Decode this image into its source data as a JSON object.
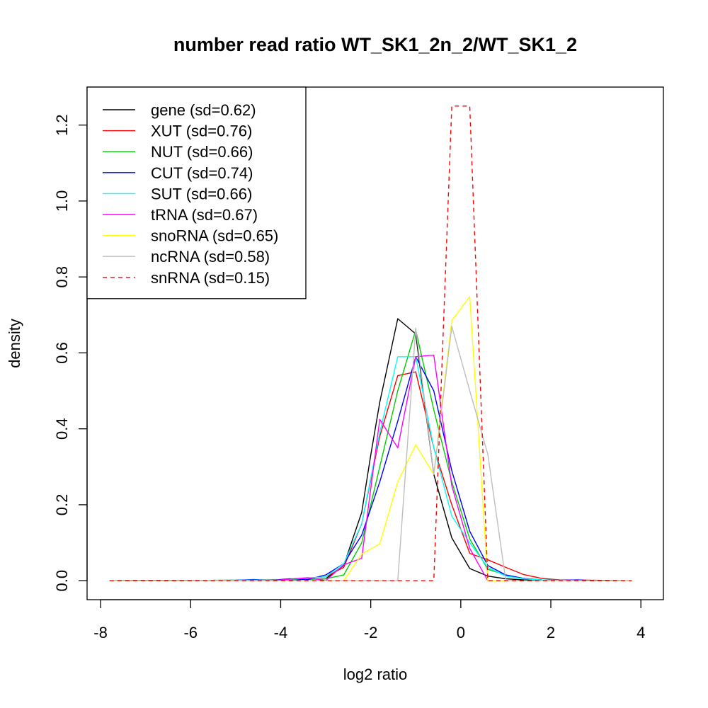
{
  "chart_data": {
    "type": "line",
    "title": "number read ratio WT_SK1_2n_2/WT_SK1_2",
    "xlabel": "log2 ratio",
    "ylabel": "density",
    "xlim": [
      -8.3,
      4.5
    ],
    "ylim": [
      -0.05,
      1.3
    ],
    "xticks": [
      -8,
      -6,
      -4,
      -2,
      0,
      2,
      4
    ],
    "yticks": [
      0.0,
      0.2,
      0.4,
      0.6,
      0.8,
      1.0,
      1.2
    ],
    "xtick_labels": [
      "-8",
      "-6",
      "-4",
      "-2",
      "0",
      "2",
      "4"
    ],
    "ytick_labels": [
      "0.0",
      "0.2",
      "0.4",
      "0.6",
      "0.8",
      "1.0",
      "1.2"
    ],
    "grid": false,
    "legend_position": "top-left",
    "series": [
      {
        "name": "gene (sd=0.62)",
        "color": "#000000",
        "dash": "solid",
        "x": [
          -7.8,
          -5.0,
          -4.0,
          -3.0,
          -2.6,
          -2.2,
          -2.0,
          -1.8,
          -1.6,
          -1.4,
          -1.0,
          -0.6,
          -0.2,
          0.2,
          0.6,
          1.0,
          1.4,
          1.8,
          2.2,
          3.0,
          3.8
        ],
        "y": [
          0,
          0.001,
          0.002,
          0.005,
          0.04,
          0.18,
          0.33,
          0.47,
          0.58,
          0.69,
          0.65,
          0.28,
          0.113,
          0.032,
          0.012,
          0.005,
          0.002,
          0.001,
          0.0,
          0.0,
          0
        ]
      },
      {
        "name": "XUT (sd=0.76)",
        "color": "#ff0000",
        "dash": "solid",
        "x": [
          -7.8,
          -5.0,
          -4.0,
          -3.0,
          -2.6,
          -2.2,
          -1.8,
          -1.4,
          -1.0,
          -0.6,
          -0.2,
          0.2,
          0.6,
          1.0,
          1.4,
          1.8,
          2.2,
          3.0,
          3.8
        ],
        "y": [
          0,
          0.001,
          0.003,
          0.01,
          0.035,
          0.15,
          0.38,
          0.54,
          0.55,
          0.35,
          0.2,
          0.072,
          0.055,
          0.035,
          0.016,
          0.006,
          0.002,
          0.001,
          0
        ]
      },
      {
        "name": "NUT (sd=0.66)",
        "color": "#00cd00",
        "dash": "solid",
        "x": [
          -7.8,
          -5.0,
          -4.0,
          -3.0,
          -2.6,
          -2.2,
          -1.8,
          -1.4,
          -1.0,
          -0.6,
          -0.2,
          0.2,
          0.6,
          1.0,
          1.4,
          1.8,
          2.2,
          3.0,
          3.8
        ],
        "y": [
          0,
          0.001,
          0.002,
          0.005,
          0.015,
          0.1,
          0.3,
          0.5,
          0.66,
          0.45,
          0.26,
          0.11,
          0.03,
          0.015,
          0.006,
          0.002,
          0.001,
          0.0,
          0
        ]
      },
      {
        "name": "CUT (sd=0.74)",
        "color": "#0000ff",
        "dash": "solid",
        "x": [
          -7.8,
          -5.0,
          -4.6,
          -4.2,
          -3.8,
          -3.4,
          -3.0,
          -2.6,
          -2.2,
          -1.8,
          -1.4,
          -1.0,
          -0.6,
          -0.2,
          0.2,
          0.6,
          1.0,
          1.4,
          1.8,
          2.2,
          2.6,
          3.0,
          3.8
        ],
        "y": [
          0,
          0.001,
          0.003,
          0.001,
          0.005,
          0.003,
          0.015,
          0.045,
          0.12,
          0.26,
          0.42,
          0.59,
          0.5,
          0.29,
          0.13,
          0.04,
          0.015,
          0.006,
          0.002,
          0.001,
          0.002,
          0.0,
          0
        ]
      },
      {
        "name": "SUT (sd=0.66)",
        "color": "#00ffff",
        "dash": "solid",
        "x": [
          -7.8,
          -5.0,
          -4.0,
          -3.0,
          -2.6,
          -2.2,
          -1.8,
          -1.4,
          -1.0,
          -0.6,
          -0.2,
          0.2,
          0.6,
          1.0,
          1.4,
          1.8,
          2.2,
          3.0,
          3.8
        ],
        "y": [
          0,
          0.001,
          0.002,
          0.01,
          0.045,
          0.15,
          0.39,
          0.59,
          0.59,
          0.35,
          0.17,
          0.1,
          0.035,
          0.012,
          0.005,
          0.002,
          0.001,
          0.0,
          0
        ]
      },
      {
        "name": "tRNA (sd=0.67)",
        "color": "#ff00ff",
        "dash": "solid",
        "x": [
          -7.8,
          -4.2,
          -3.4,
          -3.0,
          -2.6,
          -2.2,
          -1.8,
          -1.4,
          -1.0,
          -0.6,
          -0.2,
          0.2,
          0.6,
          1.0,
          1.4,
          1.8,
          2.2,
          3.8
        ],
        "y": [
          0,
          0.0,
          0.008,
          0.0,
          0.042,
          0.059,
          0.425,
          0.35,
          0.59,
          0.594,
          0.25,
          0.085,
          0.0,
          0.0,
          0.0,
          0.0,
          0.0,
          0
        ]
      },
      {
        "name": "snoRNA (sd=0.65)",
        "color": "#ffff00",
        "dash": "solid",
        "x": [
          -7.8,
          -2.6,
          -2.2,
          -1.8,
          -1.4,
          -1.0,
          -0.6,
          -0.2,
          0.2,
          0.6,
          1.0,
          3.8
        ],
        "y": [
          0,
          0.0,
          0.07,
          0.097,
          0.26,
          0.358,
          0.28,
          0.685,
          0.748,
          0.0,
          0.0,
          0
        ]
      },
      {
        "name": "ncRNA (sd=0.58)",
        "color": "#bebebe",
        "dash": "solid",
        "x": [
          -7.8,
          -1.4,
          -1.0,
          -0.6,
          -0.2,
          0.2,
          0.6,
          1.0,
          1.4,
          3.8
        ],
        "y": [
          0,
          0.0,
          0.665,
          0.28,
          0.67,
          0.5,
          0.333,
          0.0,
          0.0,
          0
        ]
      },
      {
        "name": "snRNA (sd=0.15)",
        "color": "#ff0000",
        "dash": "dashed",
        "x": [
          -7.8,
          -0.6,
          -0.2,
          0.2,
          0.6,
          3.8
        ],
        "y": [
          0,
          0.0,
          1.25,
          1.25,
          0.0,
          0
        ]
      }
    ]
  }
}
